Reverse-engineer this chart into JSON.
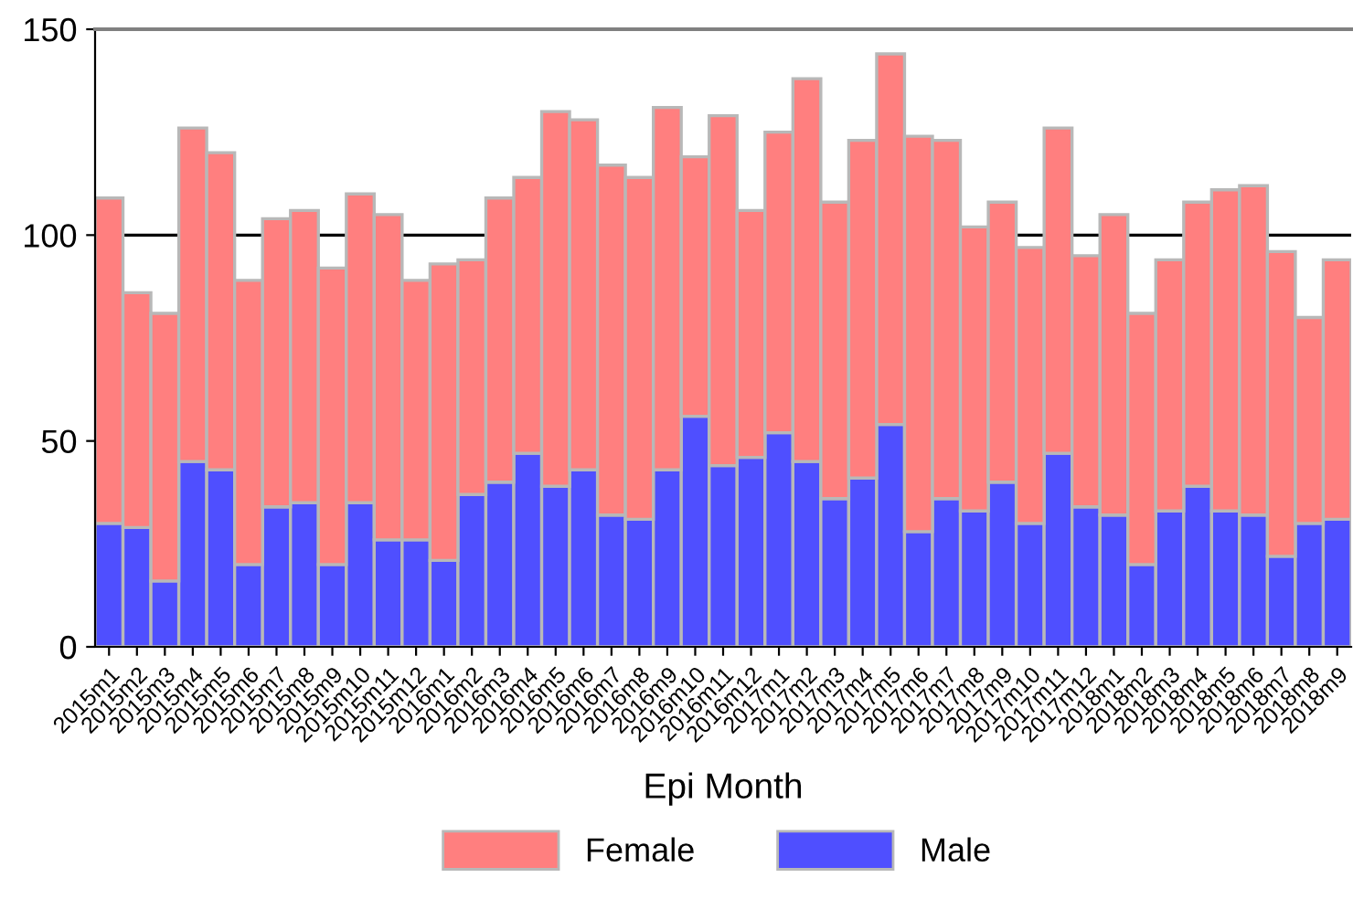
{
  "chart_data": {
    "type": "bar",
    "stacked": true,
    "xlabel": "Epi Month",
    "categories": [
      "2015m1",
      "2015m2",
      "2015m3",
      "2015m4",
      "2015m5",
      "2015m6",
      "2015m7",
      "2015m8",
      "2015m9",
      "2015m10",
      "2015m11",
      "2015m12",
      "2016m1",
      "2016m2",
      "2016m3",
      "2016m4",
      "2016m5",
      "2016m6",
      "2016m7",
      "2016m8",
      "2016m9",
      "2016m10",
      "2016m11",
      "2016m12",
      "2017m1",
      "2017m2",
      "2017m3",
      "2017m4",
      "2017m5",
      "2017m6",
      "2017m7",
      "2017m8",
      "2017m9",
      "2017m10",
      "2017m11",
      "2017m12",
      "2018m1",
      "2018m2",
      "2018m3",
      "2018m4",
      "2018m5",
      "2018m6",
      "2018m7",
      "2018m8",
      "2018m9"
    ],
    "series": [
      {
        "name": "Male",
        "color": "#4f4fff",
        "values": [
          30,
          29,
          16,
          45,
          43,
          20,
          34,
          35,
          20,
          35,
          26,
          26,
          21,
          37,
          40,
          47,
          39,
          43,
          32,
          31,
          43,
          56,
          44,
          46,
          52,
          45,
          36,
          41,
          54,
          28,
          36,
          33,
          40,
          30,
          47,
          34,
          32,
          20,
          33,
          39,
          33,
          32,
          22,
          30,
          31
        ]
      },
      {
        "name": "Female",
        "color": "#ff7f7f",
        "values": [
          79,
          57,
          65,
          81,
          77,
          69,
          70,
          71,
          72,
          75,
          79,
          63,
          72,
          57,
          69,
          67,
          91,
          85,
          85,
          83,
          88,
          63,
          85,
          60,
          73,
          93,
          72,
          82,
          90,
          96,
          87,
          69,
          68,
          67,
          79,
          61,
          73,
          61,
          61,
          69,
          78,
          80,
          74,
          50,
          63
        ]
      }
    ],
    "ylim": [
      0,
      150
    ],
    "yticks": [
      0,
      50,
      100,
      150
    ],
    "ref_lines": [
      {
        "axis": "y",
        "value": 100,
        "color": "#000000"
      }
    ],
    "legend": "bottom"
  }
}
